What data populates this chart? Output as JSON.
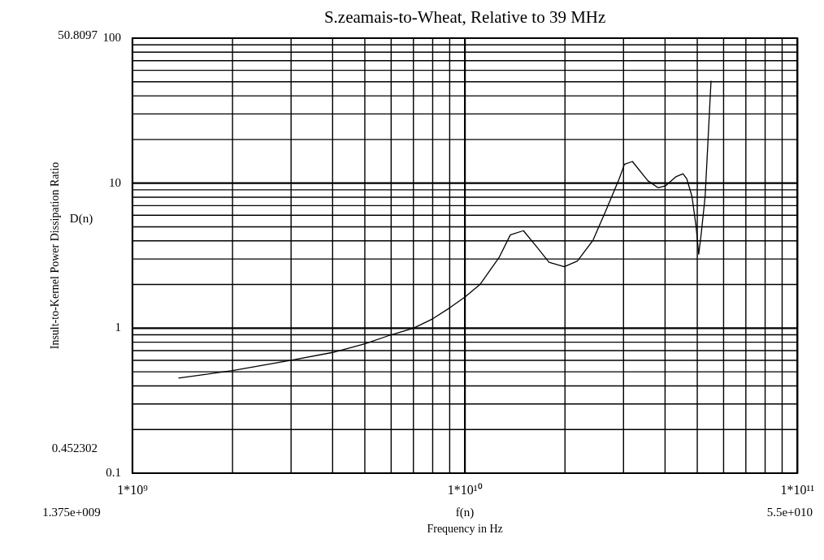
{
  "chart_data": {
    "type": "line",
    "title": "S.zeamais-to-Wheat, Relative to 39 MHz",
    "xlabel": "Frequency in Hz",
    "ylabel": "Insult-to-Kernel Power Dissipation Ratio",
    "log": "xy",
    "grid": true,
    "legend": false,
    "marker": "none",
    "line_style": "solid",
    "xlim": [
      1000000000,
      100000000000
    ],
    "ylim": [
      0.1,
      100
    ],
    "xticks": [
      {
        "value": 1000000000,
        "label": "1*10⁹"
      },
      {
        "value": 10000000000,
        "label": "1*10¹⁰"
      },
      {
        "value": 100000000000,
        "label": "1*10¹¹"
      }
    ],
    "yticks": [
      0.1,
      1,
      10,
      100
    ],
    "annotations": [
      "50.8097",
      "0.452302",
      "1.375e+009",
      "5.5e+010",
      "f(n)",
      "D(n)"
    ],
    "series": [
      {
        "color": "#000000",
        "x": [
          1375000000,
          2000000000,
          3000000000,
          4000000000,
          5000000000,
          6000000000,
          7000000000,
          8000000000,
          9000000000,
          10000000000,
          11100000000,
          12700000000,
          13700000000,
          15000000000,
          16500000000,
          17900000000,
          19900000000,
          21800000000,
          24300000000,
          26500000000,
          29100000000,
          30200000000,
          31900000000,
          35500000000,
          38100000000,
          40200000000,
          43200000000,
          45300000000,
          46500000000,
          48200000000,
          49600000000,
          50500000000,
          51400000000,
          52800000000,
          53800000000,
          55000000000
        ],
        "values": [
          0.452,
          0.51,
          0.6,
          0.68,
          0.78,
          0.9,
          1.0,
          1.16,
          1.38,
          1.64,
          2.0,
          3.1,
          4.4,
          4.7,
          3.6,
          2.85,
          2.65,
          2.9,
          4.05,
          6.4,
          10.7,
          13.5,
          14.1,
          10.4,
          9.3,
          9.6,
          11.1,
          11.6,
          10.7,
          8.1,
          5.0,
          3.24,
          4.5,
          8.1,
          18.7,
          50.8
        ]
      }
    ]
  }
}
